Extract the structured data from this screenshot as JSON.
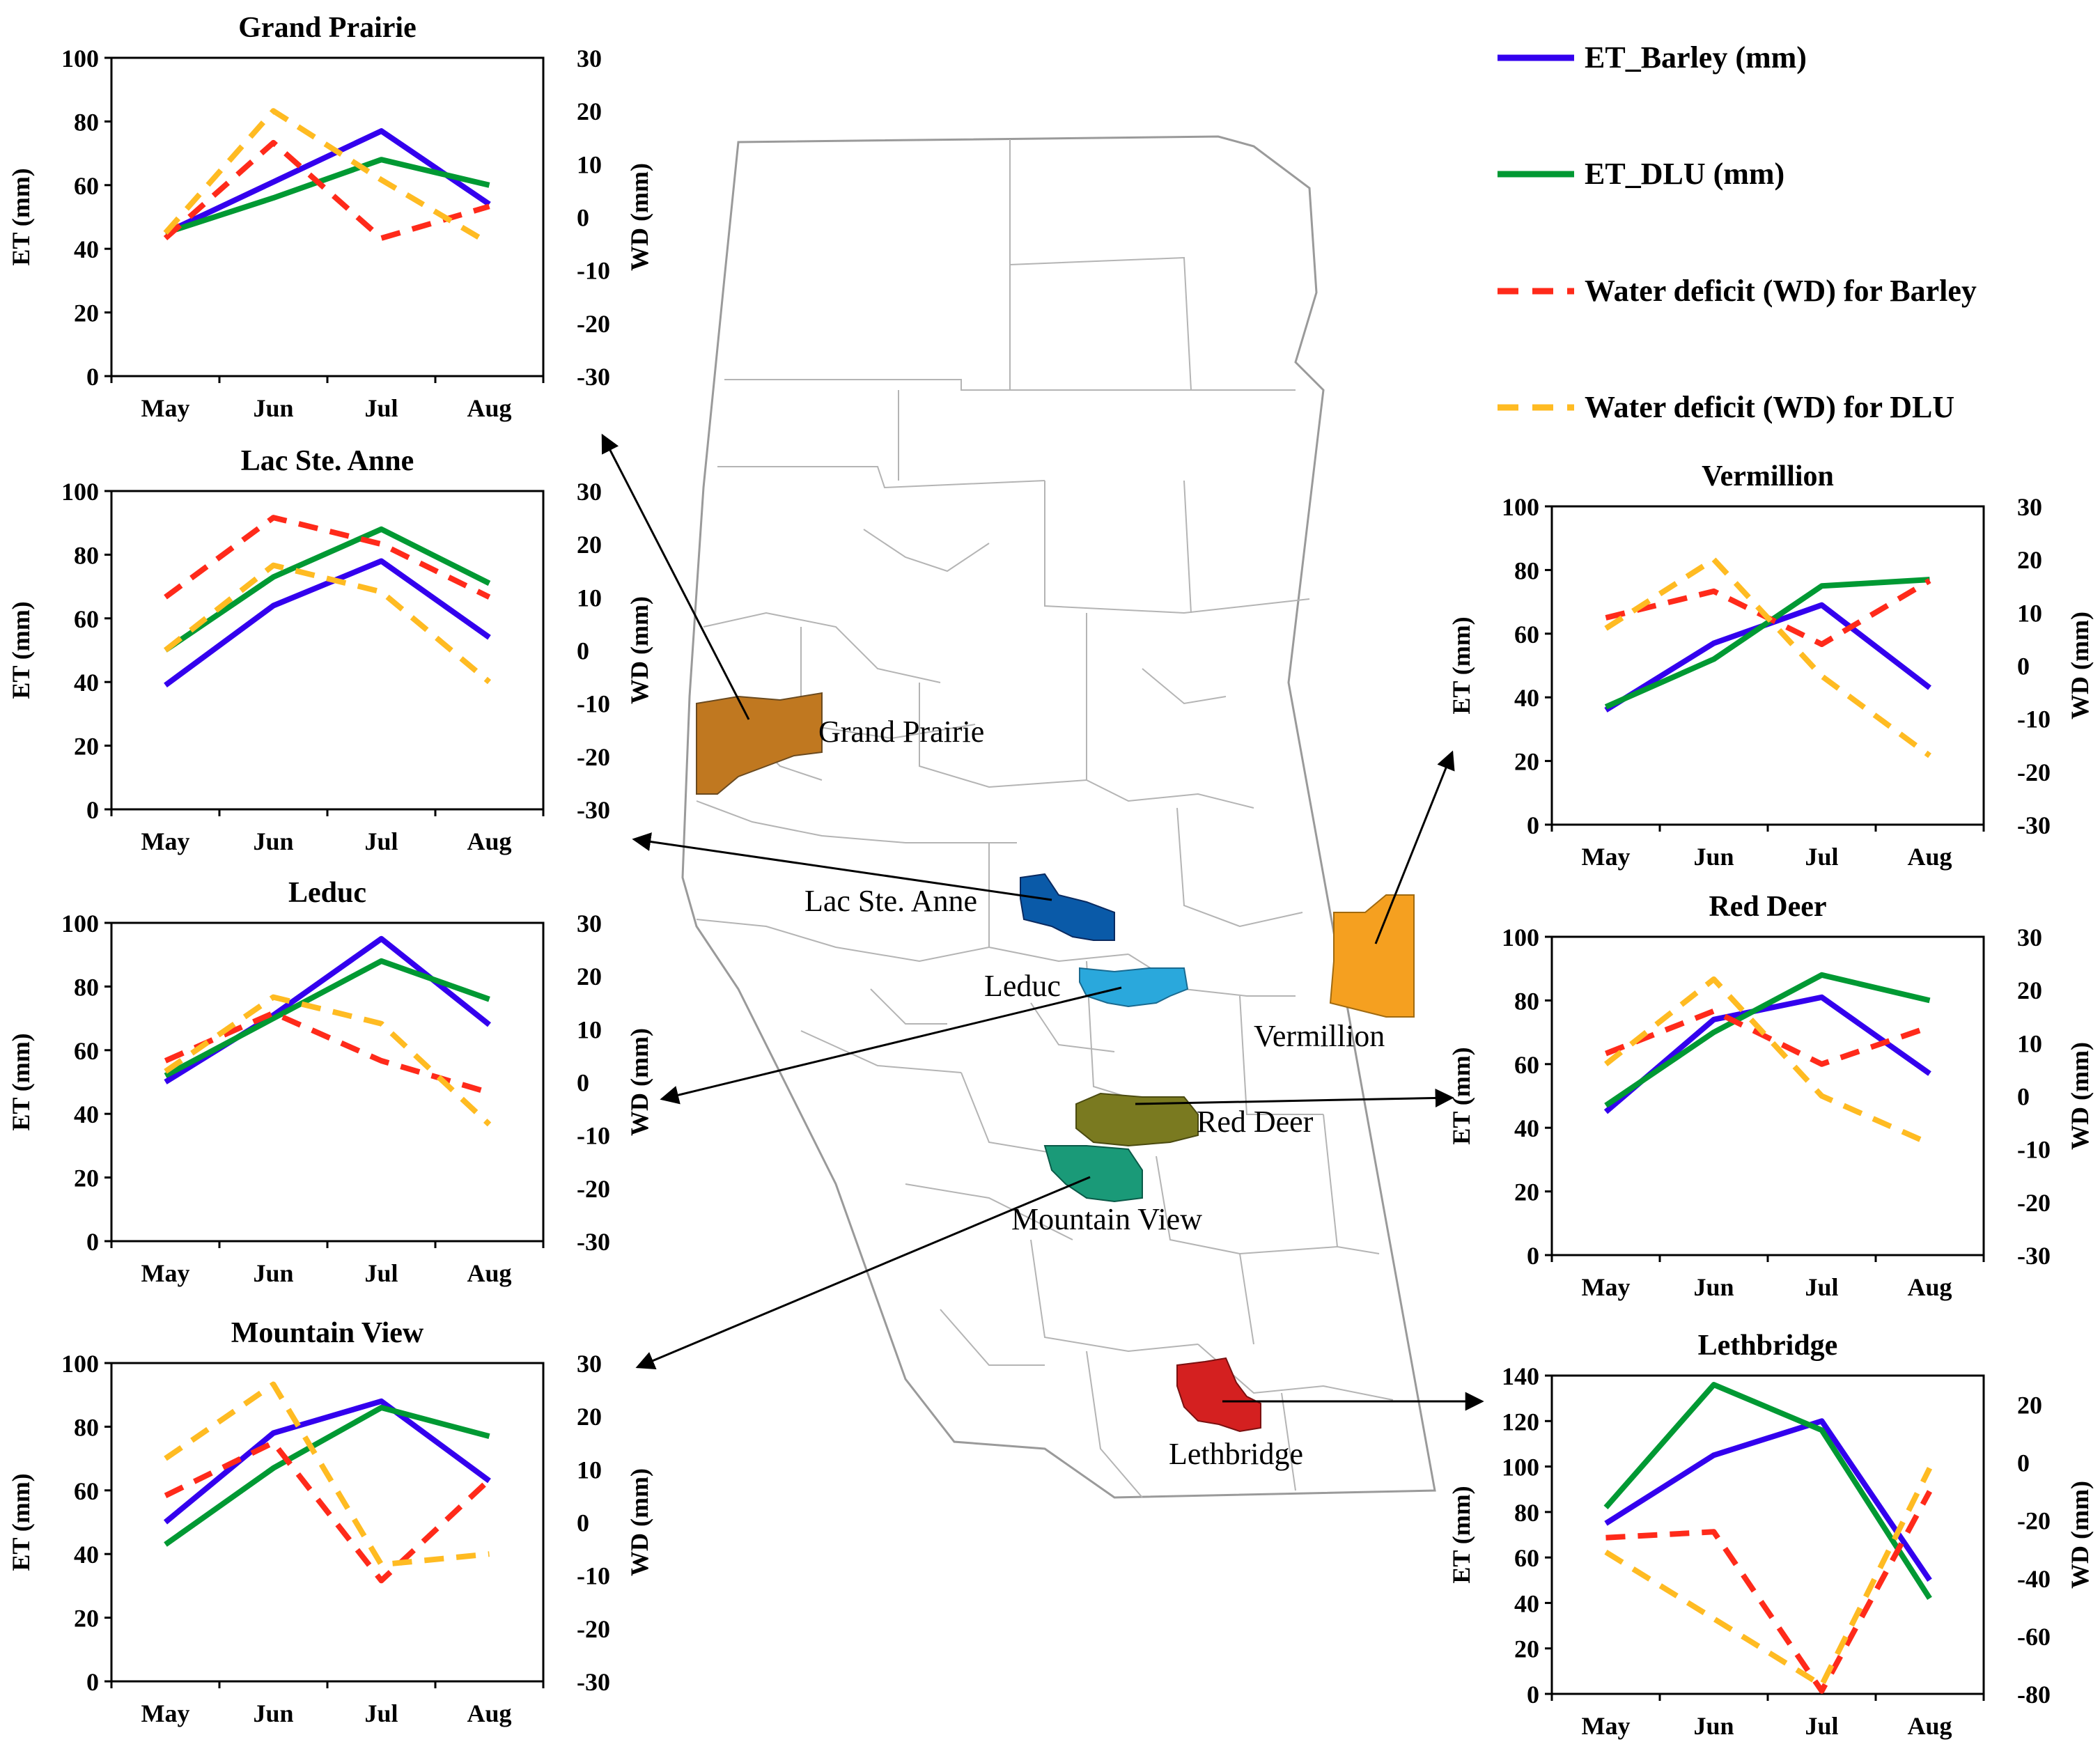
{
  "legend": {
    "items": [
      {
        "label": "ET_Barley (mm)",
        "color": "#3300ee",
        "dash": false
      },
      {
        "label": "ET_DLU (mm)",
        "color": "#009933",
        "dash": false
      },
      {
        "label": "Water deficit  (WD) for Barley",
        "color": "#ff2a1a",
        "dash": true
      },
      {
        "label": "Water deficit (WD) for DLU",
        "color": "#ffbb22",
        "dash": true
      }
    ]
  },
  "colors": {
    "barley": "#3300ee",
    "dlu": "#009933",
    "wd_barley": "#ff2a1a",
    "wd_dlu": "#ffbb22",
    "grand_prairie": "#c07820",
    "lac_ste_anne": "#0a5aa8",
    "leduc": "#2aa8dc",
    "vermillion": "#f5a020",
    "red_deer": "#7a7a20",
    "mountain_view": "#1a9a78",
    "lethbridge": "#d42020"
  },
  "map": {
    "labels": {
      "grand_prairie": "Grand Prairie",
      "lac_ste_anne": "Lac Ste. Anne",
      "leduc": "Leduc",
      "vermillion": "Vermillion",
      "red_deer": "Red Deer",
      "mountain_view": "Mountain View",
      "lethbridge": "Lethbridge"
    }
  },
  "chart_data": [
    {
      "id": "grand_prairie",
      "type": "line",
      "title": "Grand  Prairie",
      "categories": [
        "May",
        "Jun",
        "Jul",
        "Aug"
      ],
      "ylabel": "ET (mm)",
      "y2label": "WD (mm)",
      "ylim": [
        0,
        100
      ],
      "yticks": [
        0,
        20,
        40,
        60,
        80,
        100
      ],
      "y2lim": [
        -30,
        30
      ],
      "y2ticks": [
        -30,
        -20,
        -10,
        0,
        10,
        20,
        30
      ],
      "series": [
        {
          "name": "ET_Barley (mm)",
          "axis": "left",
          "values": [
            45,
            61,
            77,
            54
          ]
        },
        {
          "name": "ET_DLU (mm)",
          "axis": "left",
          "values": [
            45,
            56,
            68,
            60
          ]
        },
        {
          "name": "Water deficit  (WD) for Barley",
          "axis": "right",
          "values": [
            -4,
            14,
            -4,
            2
          ]
        },
        {
          "name": "Water deficit (WD) for DLU",
          "axis": "right",
          "values": [
            -3,
            20,
            7,
            -5
          ]
        }
      ]
    },
    {
      "id": "lac_ste_anne",
      "type": "line",
      "title": "Lac Ste. Anne",
      "categories": [
        "May",
        "Jun",
        "Jul",
        "Aug"
      ],
      "ylabel": "ET (mm)",
      "y2label": "WD (mm)",
      "ylim": [
        0,
        100
      ],
      "yticks": [
        0,
        20,
        40,
        60,
        80,
        100
      ],
      "y2lim": [
        -30,
        30
      ],
      "y2ticks": [
        -30,
        -20,
        -10,
        0,
        10,
        20,
        30
      ],
      "series": [
        {
          "name": "ET_Barley (mm)",
          "axis": "left",
          "values": [
            39,
            64,
            78,
            54
          ]
        },
        {
          "name": "ET_DLU (mm)",
          "axis": "left",
          "values": [
            50,
            73,
            88,
            71
          ]
        },
        {
          "name": "Water deficit  (WD) for Barley",
          "axis": "right",
          "values": [
            10,
            25,
            20,
            10
          ]
        },
        {
          "name": "Water deficit (WD) for DLU",
          "axis": "right",
          "values": [
            0,
            16,
            11,
            -6
          ]
        }
      ]
    },
    {
      "id": "leduc",
      "type": "line",
      "title": "Leduc",
      "categories": [
        "May",
        "Jun",
        "Jul",
        "Aug"
      ],
      "ylabel": "ET (mm)",
      "y2label": "WD (mm)",
      "ylim": [
        0,
        100
      ],
      "yticks": [
        0,
        20,
        40,
        60,
        80,
        100
      ],
      "y2lim": [
        -30,
        30
      ],
      "y2ticks": [
        -30,
        -20,
        -10,
        0,
        10,
        20,
        30
      ],
      "series": [
        {
          "name": "ET_Barley (mm)",
          "axis": "left",
          "values": [
            50,
            71,
            95,
            68
          ]
        },
        {
          "name": "ET_DLU (mm)",
          "axis": "left",
          "values": [
            52,
            70,
            88,
            76
          ]
        },
        {
          "name": "Water deficit  (WD) for Barley",
          "axis": "right",
          "values": [
            4,
            13,
            4,
            -2
          ]
        },
        {
          "name": "Water deficit (WD) for DLU",
          "axis": "right",
          "values": [
            2,
            16,
            11,
            -8
          ]
        }
      ]
    },
    {
      "id": "mountain_view",
      "type": "line",
      "title": "Mountain View",
      "categories": [
        "May",
        "Jun",
        "Jul",
        "Aug"
      ],
      "ylabel": "ET (mm)",
      "y2label": "WD (mm)",
      "ylim": [
        0,
        100
      ],
      "yticks": [
        0,
        20,
        40,
        60,
        80,
        100
      ],
      "y2lim": [
        -30,
        30
      ],
      "y2ticks": [
        -30,
        -20,
        -10,
        0,
        10,
        20,
        30
      ],
      "series": [
        {
          "name": "ET_Barley (mm)",
          "axis": "left",
          "values": [
            50,
            78,
            88,
            63
          ]
        },
        {
          "name": "ET_DLU (mm)",
          "axis": "left",
          "values": [
            43,
            67,
            86,
            77
          ]
        },
        {
          "name": "Water deficit  (WD) for Barley",
          "axis": "right",
          "values": [
            5,
            15,
            -11,
            8
          ]
        },
        {
          "name": "Water deficit (WD) for DLU",
          "axis": "right",
          "values": [
            12,
            26,
            -8,
            -6
          ]
        }
      ]
    },
    {
      "id": "vermillion",
      "type": "line",
      "title": "Vermillion",
      "categories": [
        "May",
        "Jun",
        "Jul",
        "Aug"
      ],
      "ylabel": "ET (mm)",
      "y2label": "WD (mm)",
      "ylim": [
        0,
        100
      ],
      "yticks": [
        0,
        20,
        40,
        60,
        80,
        100
      ],
      "y2lim": [
        -30,
        30
      ],
      "y2ticks": [
        -30,
        -20,
        -10,
        0,
        10,
        20,
        30
      ],
      "series": [
        {
          "name": "ET_Barley (mm)",
          "axis": "left",
          "values": [
            36,
            57,
            69,
            43
          ]
        },
        {
          "name": "ET_DLU (mm)",
          "axis": "left",
          "values": [
            37,
            52,
            75,
            77
          ]
        },
        {
          "name": "Water deficit  (WD) for Barley",
          "axis": "right",
          "values": [
            9,
            14,
            4,
            16
          ]
        },
        {
          "name": "Water deficit (WD) for DLU",
          "axis": "right",
          "values": [
            7,
            20,
            -2,
            -17
          ]
        }
      ]
    },
    {
      "id": "red_deer",
      "type": "line",
      "title": "Red Deer",
      "categories": [
        "May",
        "Jun",
        "Jul",
        "Aug"
      ],
      "ylabel": "ET (mm)",
      "y2label": "WD (mm)",
      "ylim": [
        0,
        100
      ],
      "yticks": [
        0,
        20,
        40,
        60,
        80,
        100
      ],
      "y2lim": [
        -30,
        30
      ],
      "y2ticks": [
        -30,
        -20,
        -10,
        0,
        10,
        20,
        30
      ],
      "series": [
        {
          "name": "ET_Barley (mm)",
          "axis": "left",
          "values": [
            45,
            74,
            81,
            57
          ]
        },
        {
          "name": "ET_DLU (mm)",
          "axis": "left",
          "values": [
            47,
            70,
            88,
            80
          ]
        },
        {
          "name": "Water deficit  (WD) for Barley",
          "axis": "right",
          "values": [
            8,
            16,
            6,
            13
          ]
        },
        {
          "name": "Water deficit (WD) for DLU",
          "axis": "right",
          "values": [
            6,
            22,
            0,
            -9
          ]
        }
      ]
    },
    {
      "id": "lethbridge",
      "type": "line",
      "title": "Lethbridge",
      "categories": [
        "May",
        "Jun",
        "Jul",
        "Aug"
      ],
      "ylabel": "ET (mm)",
      "y2label": "WD (mm)",
      "ylim": [
        0,
        140
      ],
      "yticks": [
        0,
        20,
        40,
        60,
        80,
        100,
        120,
        140
      ],
      "y2lim": [
        -80,
        30
      ],
      "y2ticks": [
        -80,
        -60,
        -40,
        -20,
        0,
        20
      ],
      "series": [
        {
          "name": "ET_Barley (mm)",
          "axis": "left",
          "values": [
            75,
            105,
            120,
            50
          ]
        },
        {
          "name": "ET_DLU (mm)",
          "axis": "left",
          "values": [
            82,
            136,
            116,
            42
          ]
        },
        {
          "name": "Water deficit  (WD) for Barley",
          "axis": "right",
          "values": [
            -26,
            -24,
            -79,
            -10
          ]
        },
        {
          "name": "Water deficit (WD) for DLU",
          "axis": "right",
          "values": [
            -31,
            -54,
            -77,
            -2
          ]
        }
      ]
    }
  ]
}
